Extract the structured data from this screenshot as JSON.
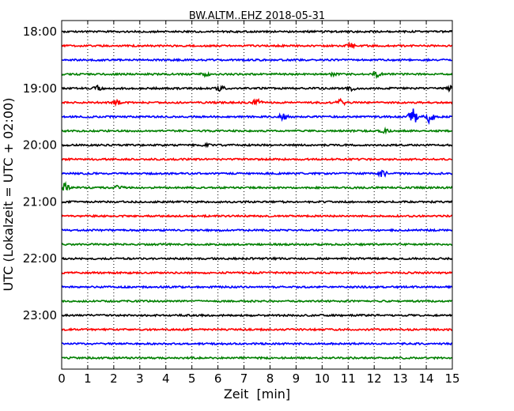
{
  "chart_data": {
    "type": "line",
    "subtype": "seismogram-helicorder",
    "title": "BW.ALTM..EHZ 2018-05-31",
    "xlabel": "Zeit  [min]",
    "ylabel": "UTC (Lokalzeit = UTC + 02:00)",
    "xlim": [
      0,
      15
    ],
    "x_ticks": [
      "0",
      "1",
      "2",
      "3",
      "4",
      "5",
      "6",
      "7",
      "8",
      "9",
      "10",
      "11",
      "12",
      "13",
      "14",
      "15"
    ],
    "y_tick_labels": [
      "18:00",
      "19:00",
      "20:00",
      "21:00",
      "22:00",
      "23:00"
    ],
    "row_minutes": 15,
    "trace_colors": [
      "#000000",
      "#ff0000",
      "#0000ff",
      "#008000"
    ],
    "grid": "vertical dotted at each minute",
    "traces": [
      {
        "start": "18:00",
        "events": []
      },
      {
        "start": "18:15",
        "events": [
          {
            "x": 11.1,
            "amp": 3
          }
        ]
      },
      {
        "start": "18:30",
        "events": []
      },
      {
        "start": "18:45",
        "events": [
          {
            "x": 5.5,
            "amp": 2
          },
          {
            "x": 10.4,
            "amp": 2
          },
          {
            "x": 12.1,
            "amp": 3
          }
        ]
      },
      {
        "start": "19:00",
        "events": [
          {
            "x": 1.4,
            "amp": 3
          },
          {
            "x": 6.1,
            "amp": 3
          },
          {
            "x": 11.1,
            "amp": 3
          },
          {
            "x": 14.9,
            "amp": 3
          }
        ]
      },
      {
        "start": "19:15",
        "events": [
          {
            "x": 2.1,
            "amp": 3
          },
          {
            "x": 7.5,
            "amp": 4
          },
          {
            "x": 10.7,
            "amp": 4
          }
        ]
      },
      {
        "start": "19:30",
        "events": [
          {
            "x": 8.5,
            "amp": 4
          },
          {
            "x": 13.5,
            "amp": 10
          },
          {
            "x": 14.1,
            "amp": 8
          }
        ]
      },
      {
        "start": "19:45",
        "events": [
          {
            "x": 12.4,
            "amp": 2
          }
        ]
      },
      {
        "start": "20:00",
        "events": [
          {
            "x": 5.6,
            "amp": 1.5
          }
        ]
      },
      {
        "start": "20:15",
        "events": []
      },
      {
        "start": "20:30",
        "events": [
          {
            "x": 12.3,
            "amp": 5
          }
        ]
      },
      {
        "start": "20:45",
        "events": [
          {
            "x": 0.1,
            "amp": 6
          },
          {
            "x": 2.2,
            "amp": 3
          }
        ]
      },
      {
        "start": "21:00",
        "events": []
      },
      {
        "start": "21:15",
        "events": []
      },
      {
        "start": "21:30",
        "events": []
      },
      {
        "start": "21:45",
        "events": []
      },
      {
        "start": "22:00",
        "events": []
      },
      {
        "start": "22:15",
        "events": []
      },
      {
        "start": "22:30",
        "events": []
      },
      {
        "start": "22:45",
        "events": []
      },
      {
        "start": "23:00",
        "events": []
      },
      {
        "start": "23:15",
        "events": []
      },
      {
        "start": "23:30",
        "events": []
      },
      {
        "start": "23:45",
        "events": []
      }
    ]
  }
}
